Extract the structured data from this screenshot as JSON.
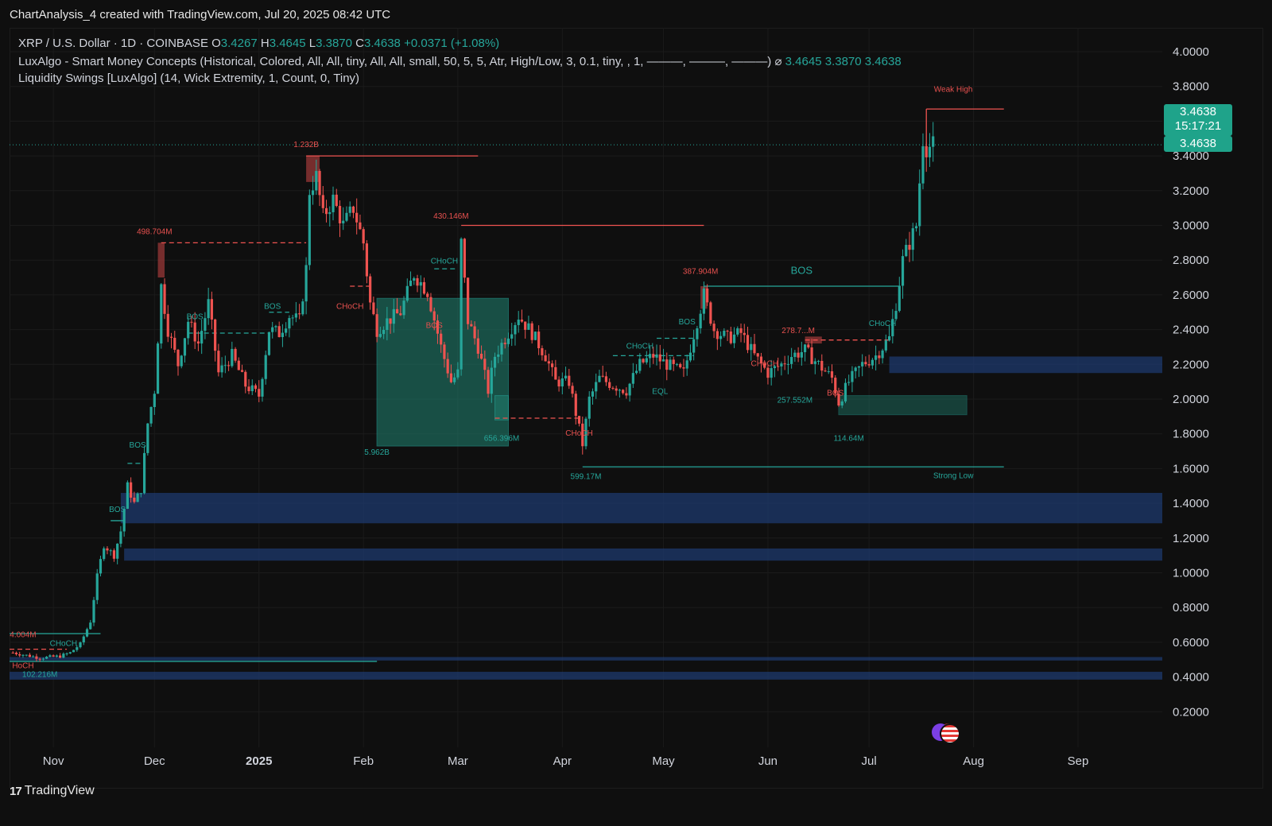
{
  "header": {
    "created_line": "ChartAnalysis_4 created with TradingView.com, Jul 20, 2025 08:42 UTC"
  },
  "legend": {
    "symbol": "XRP / U.S. Dollar · 1D · COINBASE",
    "open_label": "O",
    "open": "3.4267",
    "high_label": "H",
    "high": "3.4645",
    "low_label": "L",
    "low": "3.3870",
    "close_label": "C",
    "close": "3.4638",
    "change": "+0.0371 (+1.08%)",
    "indicator1": "LuxAlgo - Smart Money Concepts (Historical, Colored, All, All, tiny, All, All, small, 50, 5, 5, Atr, High/Low, 3, 0.1, tiny, , 1, ———, ———, ———)",
    "indicator1_symbol": "⌀",
    "indicator1_values": [
      "3.4645",
      "3.3870",
      "3.4638"
    ],
    "indicator2": "Liquidity Swings [LuxAlgo] (14, Wick Extremity, 1, Count, 0, Tiny)"
  },
  "price_badge": {
    "price": "3.4638",
    "countdown": "15:17:21",
    "last": "3.4638"
  },
  "footer": {
    "brand": "TradingView"
  },
  "icons": {
    "flag": "us-flag-icon",
    "logo": "tradingview-logo-icon"
  },
  "colors": {
    "up": "#26a69a",
    "down": "#ef5350",
    "zone_blue": "#1e3a6e",
    "zone_green": "#1f7a6a",
    "label_red": "#e8514f",
    "label_green": "#26a69a",
    "badge": "#1fa38a"
  },
  "chart_data": {
    "type": "candlestick",
    "title": "",
    "xlabel": "",
    "ylabel": "",
    "y_axis_ticks": [
      "4.0000",
      "3.8000",
      "3.6000",
      "3.4000",
      "3.2000",
      "3.0000",
      "2.8000",
      "2.6000",
      "2.4000",
      "2.2000",
      "2.0000",
      "1.8000",
      "1.6000",
      "1.4000",
      "1.2000",
      "1.0000",
      "0.8000",
      "0.6000",
      "0.4000",
      "0.2000"
    ],
    "ylim": [
      0.0,
      4.2
    ],
    "x_axis_ticks": [
      {
        "date": "2024-11-01",
        "label": "Nov"
      },
      {
        "date": "2024-12-01",
        "label": "Dec"
      },
      {
        "date": "2025-01-01",
        "label": "2025"
      },
      {
        "date": "2025-02-01",
        "label": "Feb"
      },
      {
        "date": "2025-03-01",
        "label": "Mar"
      },
      {
        "date": "2025-04-01",
        "label": "Apr"
      },
      {
        "date": "2025-05-01",
        "label": "May"
      },
      {
        "date": "2025-06-01",
        "label": "Jun"
      },
      {
        "date": "2025-07-01",
        "label": "Jul"
      },
      {
        "date": "2025-08-01",
        "label": "Aug"
      },
      {
        "date": "2025-09-01",
        "label": "Sep"
      }
    ],
    "xlim": [
      "2024-10-19",
      "2025-09-26"
    ],
    "current_price": 3.4638,
    "price_path": [
      [
        "2024-10-20",
        0.54
      ],
      [
        "2024-10-28",
        0.51
      ],
      [
        "2024-11-03",
        0.52
      ],
      [
        "2024-11-06",
        0.54
      ],
      [
        "2024-11-09",
        0.59
      ],
      [
        "2024-11-12",
        0.72
      ],
      [
        "2024-11-14",
        0.98
      ],
      [
        "2024-11-16",
        1.16
      ],
      [
        "2024-11-19",
        1.1
      ],
      [
        "2024-11-21",
        1.24
      ],
      [
        "2024-11-23",
        1.5
      ],
      [
        "2024-11-25",
        1.4
      ],
      [
        "2024-11-27",
        1.48
      ],
      [
        "2024-11-29",
        1.86
      ],
      [
        "2024-12-01",
        2.05
      ],
      [
        "2024-12-03",
        2.65
      ],
      [
        "2024-12-05",
        2.4
      ],
      [
        "2024-12-08",
        2.2
      ],
      [
        "2024-12-11",
        2.45
      ],
      [
        "2024-12-14",
        2.32
      ],
      [
        "2024-12-17",
        2.55
      ],
      [
        "2024-12-20",
        2.15
      ],
      [
        "2024-12-24",
        2.25
      ],
      [
        "2024-12-28",
        2.08
      ],
      [
        "2025-01-01",
        2.02
      ],
      [
        "2025-01-04",
        2.4
      ],
      [
        "2025-01-07",
        2.38
      ],
      [
        "2025-01-10",
        2.48
      ],
      [
        "2025-01-13",
        2.45
      ],
      [
        "2025-01-15",
        2.75
      ],
      [
        "2025-01-16",
        3.2
      ],
      [
        "2025-01-18",
        3.28
      ],
      [
        "2025-01-20",
        3.05
      ],
      [
        "2025-01-23",
        3.15
      ],
      [
        "2025-01-26",
        3.0
      ],
      [
        "2025-01-29",
        3.1
      ],
      [
        "2025-02-01",
        2.9
      ],
      [
        "2025-02-03",
        2.55
      ],
      [
        "2025-02-05",
        2.4
      ],
      [
        "2025-02-08",
        2.45
      ],
      [
        "2025-02-12",
        2.5
      ],
      [
        "2025-02-16",
        2.72
      ],
      [
        "2025-02-20",
        2.62
      ],
      [
        "2025-02-24",
        2.3
      ],
      [
        "2025-02-27",
        2.1
      ],
      [
        "2025-03-01",
        2.15
      ],
      [
        "2025-03-02",
        2.9
      ],
      [
        "2025-03-04",
        2.45
      ],
      [
        "2025-03-07",
        2.3
      ],
      [
        "2025-03-10",
        2.05
      ],
      [
        "2025-03-12",
        2.25
      ],
      [
        "2025-03-15",
        2.35
      ],
      [
        "2025-03-19",
        2.48
      ],
      [
        "2025-03-23",
        2.38
      ],
      [
        "2025-03-27",
        2.25
      ],
      [
        "2025-03-30",
        2.1
      ],
      [
        "2025-04-03",
        2.1
      ],
      [
        "2025-04-07",
        1.74
      ],
      [
        "2025-04-09",
        2.0
      ],
      [
        "2025-04-12",
        2.12
      ],
      [
        "2025-04-16",
        2.08
      ],
      [
        "2025-04-20",
        2.05
      ],
      [
        "2025-04-24",
        2.2
      ],
      [
        "2025-04-28",
        2.25
      ],
      [
        "2025-05-02",
        2.2
      ],
      [
        "2025-05-07",
        2.15
      ],
      [
        "2025-05-11",
        2.45
      ],
      [
        "2025-05-13",
        2.6
      ],
      [
        "2025-05-16",
        2.4
      ],
      [
        "2025-05-20",
        2.35
      ],
      [
        "2025-05-24",
        2.38
      ],
      [
        "2025-05-28",
        2.25
      ],
      [
        "2025-06-01",
        2.15
      ],
      [
        "2025-06-05",
        2.2
      ],
      [
        "2025-06-08",
        2.25
      ],
      [
        "2025-06-12",
        2.28
      ],
      [
        "2025-06-16",
        2.2
      ],
      [
        "2025-06-20",
        2.12
      ],
      [
        "2025-06-22",
        1.98
      ],
      [
        "2025-06-25",
        2.1
      ],
      [
        "2025-06-29",
        2.2
      ],
      [
        "2025-07-03",
        2.25
      ],
      [
        "2025-07-07",
        2.35
      ],
      [
        "2025-07-09",
        2.55
      ],
      [
        "2025-07-11",
        2.8
      ],
      [
        "2025-07-13",
        2.9
      ],
      [
        "2025-07-15",
        3.0
      ],
      [
        "2025-07-17",
        3.5
      ],
      [
        "2025-07-18",
        3.45
      ],
      [
        "2025-07-20",
        3.46
      ]
    ],
    "annotations": [
      {
        "text": "Weak High",
        "date": "2025-07-26",
        "price": 3.77,
        "color": "red"
      },
      {
        "text": "Strong Low",
        "date": "2025-07-26",
        "price": 1.545,
        "color": "green"
      },
      {
        "text": "1.232B",
        "date": "2025-01-15",
        "price": 3.45,
        "color": "red"
      },
      {
        "text": "430.146M",
        "date": "2025-02-27",
        "price": 3.04,
        "color": "red"
      },
      {
        "text": "498.704M",
        "date": "2024-12-01",
        "price": 2.95,
        "color": "red"
      },
      {
        "text": "387.904M",
        "date": "2025-05-12",
        "price": 2.72,
        "color": "red"
      },
      {
        "text": "278.7...M",
        "date": "2025-06-10",
        "price": 2.38,
        "color": "red"
      },
      {
        "text": "BOS",
        "date": "2025-06-11",
        "price": 2.72,
        "color": "green"
      },
      {
        "text": "5.962B",
        "date": "2025-02-05",
        "price": 1.68,
        "color": "green"
      },
      {
        "text": "656.396M",
        "date": "2025-03-14",
        "price": 1.76,
        "color": "green"
      },
      {
        "text": "599.17M",
        "date": "2025-04-08",
        "price": 1.54,
        "color": "green"
      },
      {
        "text": "257.552M",
        "date": "2025-06-09",
        "price": 1.98,
        "color": "green"
      },
      {
        "text": "114.64M",
        "date": "2025-06-25",
        "price": 1.76,
        "color": "green"
      },
      {
        "text": "4.004M",
        "date": "2024-10-23",
        "price": 0.63,
        "color": "red"
      },
      {
        "text": "102.216M",
        "date": "2024-10-28",
        "price": 0.4,
        "color": "green"
      },
      {
        "text": "CHoCH",
        "date": "2025-02-25",
        "price": 2.78,
        "color": "green"
      },
      {
        "text": "CHoCH",
        "date": "2025-01-28",
        "price": 2.52,
        "color": "red"
      },
      {
        "text": "BOS",
        "date": "2025-02-22",
        "price": 2.41,
        "color": "red"
      },
      {
        "text": "BOS",
        "date": "2025-01-05",
        "price": 2.52,
        "color": "green"
      },
      {
        "text": "BOS",
        "date": "2024-12-13",
        "price": 2.46,
        "color": "green"
      },
      {
        "text": "CHoCH",
        "date": "2025-04-24",
        "price": 2.29,
        "color": "green"
      },
      {
        "text": "BOS",
        "date": "2025-05-08",
        "price": 2.43,
        "color": "green"
      },
      {
        "text": "EQL",
        "date": "2025-04-30",
        "price": 2.03,
        "color": "green"
      },
      {
        "text": "CHoCH",
        "date": "2025-04-06",
        "price": 1.79,
        "color": "red"
      },
      {
        "text": "CHoCH",
        "date": "2025-05-31",
        "price": 2.19,
        "color": "red"
      },
      {
        "text": "BOS",
        "date": "2025-06-21",
        "price": 2.02,
        "color": "red"
      },
      {
        "text": "CHoCH",
        "date": "2025-07-05",
        "price": 2.42,
        "color": "green"
      },
      {
        "text": "BOS",
        "date": "2024-11-26",
        "price": 1.72,
        "color": "green"
      },
      {
        "text": "BOS",
        "date": "2024-11-20",
        "price": 1.35,
        "color": "green"
      },
      {
        "text": "CHoCH",
        "date": "2024-11-04",
        "price": 0.58,
        "color": "green"
      },
      {
        "text": "HoCH",
        "date": "2024-10-23",
        "price": 0.45,
        "color": "red"
      }
    ]
  }
}
